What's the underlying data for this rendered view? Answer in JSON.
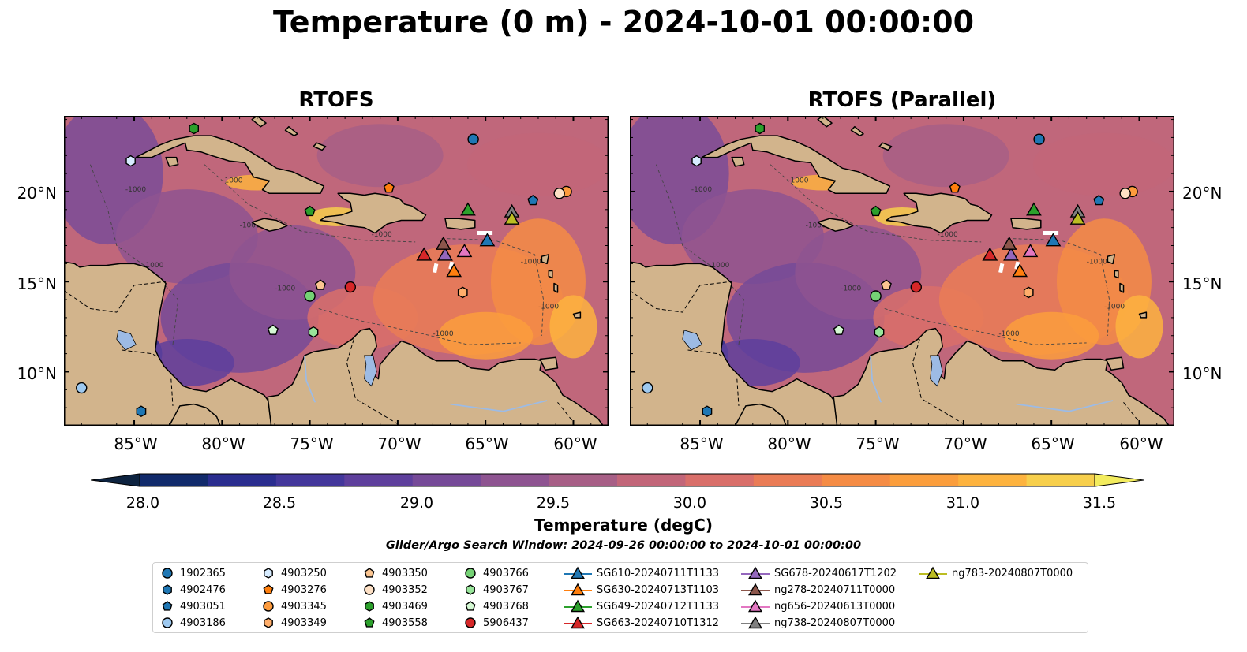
{
  "title": "Temperature (0 m) - 2024-10-01 00:00:00",
  "panels": [
    {
      "title": "RTOFS"
    },
    {
      "title": "RTOFS (Parallel)"
    }
  ],
  "x_ticks": [
    "85°W",
    "80°W",
    "75°W",
    "70°W",
    "65°W",
    "60°W"
  ],
  "y_ticks": [
    "20°N",
    "15°N",
    "10°N"
  ],
  "map_extent": {
    "lon": [
      -89,
      -58
    ],
    "lat": [
      7,
      24.2
    ]
  },
  "contour_labels": [
    "-1000",
    "-1000",
    "-1000",
    "-1000",
    "-1000",
    "-1000",
    "-1000",
    "-1000",
    "-1000"
  ],
  "colorbar": {
    "label": "Temperature (degC)",
    "min": 28.0,
    "max": 31.5,
    "step": 0.25,
    "ticks": [
      "28.0",
      "28.5",
      "29.0",
      "29.5",
      "30.0",
      "30.5",
      "31.0",
      "31.5"
    ],
    "colors": [
      "#0d2340",
      "#112a6b",
      "#2a2d8f",
      "#43379b",
      "#5e3f9c",
      "#764a98",
      "#8e5491",
      "#a75f86",
      "#c26679",
      "#d96f6a",
      "#ea7c56",
      "#f58c45",
      "#fb9e3d",
      "#fdb33f",
      "#f7cf4c",
      "#f3ec5e"
    ]
  },
  "search_window": "Glider/Argo Search Window: 2024-09-26 00:00:00 to 2024-10-01 00:00:00",
  "markers": [
    {
      "label": "1902365",
      "shape": "circle",
      "color": "#1f77b4",
      "lon": -65.7,
      "lat": 22.9
    },
    {
      "label": "4902476",
      "shape": "hexagon",
      "color": "#1f77b4",
      "lon": -84.6,
      "lat": 7.8
    },
    {
      "label": "4903051",
      "shape": "pentagon",
      "color": "#1f77b4",
      "lon": -62.3,
      "lat": 19.5
    },
    {
      "label": "4903186",
      "shape": "circle",
      "color": "#9ec9f0",
      "lon": -88.0,
      "lat": 9.1
    },
    {
      "label": "4903250",
      "shape": "hexagon",
      "color": "#d7ecff",
      "lon": -85.2,
      "lat": 21.7
    },
    {
      "label": "4903276",
      "shape": "pentagon",
      "color": "#ff7f0e",
      "lon": -70.5,
      "lat": 20.2
    },
    {
      "label": "4903345",
      "shape": "circle",
      "color": "#fd9b3d",
      "lon": -60.4,
      "lat": 20.0
    },
    {
      "label": "4903349",
      "shape": "hexagon",
      "color": "#ffae6b",
      "lon": -66.3,
      "lat": 14.4
    },
    {
      "label": "4903350",
      "shape": "pentagon",
      "color": "#fbc591",
      "lon": -74.4,
      "lat": 14.8
    },
    {
      "label": "4903352",
      "shape": "circle",
      "color": "#fde0c5",
      "lon": -60.8,
      "lat": 19.9
    },
    {
      "label": "4903469",
      "shape": "hexagon",
      "color": "#2ca02c",
      "lon": -81.6,
      "lat": 23.5
    },
    {
      "label": "4903558",
      "shape": "pentagon",
      "color": "#2ca02c",
      "lon": -75.0,
      "lat": 18.9
    },
    {
      "label": "4903766",
      "shape": "circle",
      "color": "#75d275",
      "lon": -75.0,
      "lat": 14.2
    },
    {
      "label": "4903767",
      "shape": "hexagon",
      "color": "#98e59a",
      "lon": -74.8,
      "lat": 12.2
    },
    {
      "label": "4903768",
      "shape": "pentagon",
      "color": "#d4f8d3",
      "lon": -77.1,
      "lat": 12.3
    },
    {
      "label": "5906437",
      "shape": "circle",
      "color": "#d62728",
      "lon": -72.7,
      "lat": 14.7
    },
    {
      "label": "SG610-20240711T1133",
      "shape": "triangle",
      "color": "#1f77b4",
      "lon": -64.9,
      "lat": 17.3,
      "line": true
    },
    {
      "label": "SG630-20240713T1103",
      "shape": "triangle",
      "color": "#ff7f0e",
      "lon": -66.8,
      "lat": 15.6,
      "line": true
    },
    {
      "label": "SG649-20240712T1133",
      "shape": "triangle",
      "color": "#2ca02c",
      "lon": -66.0,
      "lat": 19.0,
      "line": true
    },
    {
      "label": "SG663-20240710T1312",
      "shape": "triangle",
      "color": "#d62728",
      "lon": -68.5,
      "lat": 16.5,
      "line": true
    },
    {
      "label": "SG678-20240617T1202",
      "shape": "triangle",
      "color": "#9467bd",
      "lon": -67.3,
      "lat": 16.5,
      "line": true
    },
    {
      "label": "ng278-20240711T0000",
      "shape": "triangle",
      "color": "#8c564b",
      "lon": -67.4,
      "lat": 17.1,
      "line": true
    },
    {
      "label": "ng656-20240613T0000",
      "shape": "triangle",
      "color": "#e377c2",
      "lon": -66.2,
      "lat": 16.7,
      "line": true
    },
    {
      "label": "ng738-20240807T0000",
      "shape": "triangle",
      "color": "#7f7f7f",
      "lon": -63.5,
      "lat": 18.9,
      "line": true
    },
    {
      "label": "ng783-20240807T0000",
      "shape": "triangle",
      "color": "#bcbd22",
      "lon": -63.5,
      "lat": 18.5,
      "line": true
    }
  ],
  "colors": {
    "land": "#d2b48c",
    "lake": "#9dbbe4",
    "coast": "#000000"
  }
}
